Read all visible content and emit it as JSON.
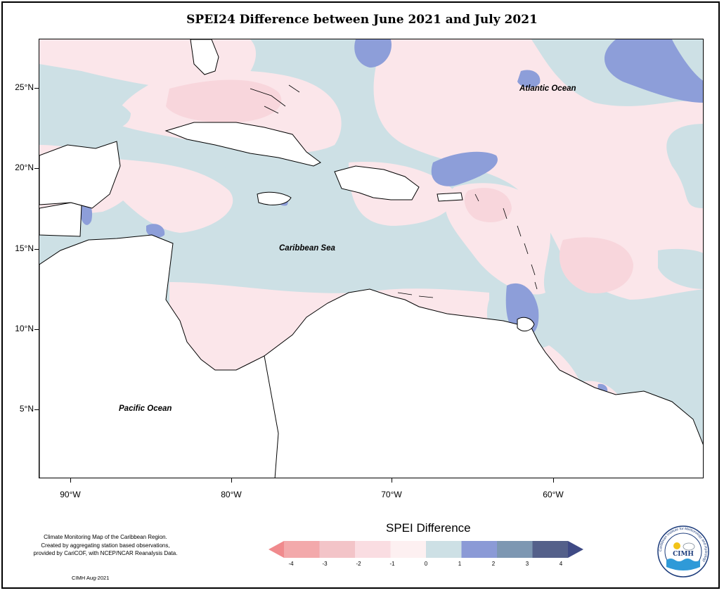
{
  "title": "SPEI24 Difference between June 2021 and July 2021",
  "latitude_labels": [
    "25°N",
    "20°N",
    "15°N",
    "10°N",
    "5°N"
  ],
  "longitude_labels": [
    "90°W",
    "80°W",
    "70°W",
    "60°W"
  ],
  "place_labels": {
    "atlantic": "Atlantic Ocean",
    "caribbean": "Caribbean Sea",
    "pacific": "Pacific Ocean"
  },
  "note_lines": [
    "Climate Monitoring Map of the Caribbean Region.",
    "Created by aggregating station based observations,",
    "provided by CariCOF, with NCEP/NCAR Reanalysis Data."
  ],
  "credit": "CIMH Aug-2021",
  "legend": {
    "title": "SPEI Difference",
    "ticks": [
      "-4",
      "-3",
      "-2",
      "-1",
      "0",
      "1",
      "2",
      "3",
      "4"
    ],
    "colors": [
      "#f08a8d",
      "#f3a9ab",
      "#f3c4c8",
      "#fadde2",
      "#fdf0f1",
      "#cde0e5",
      "#8b9ad6",
      "#7d97b2",
      "#54608a",
      "#3f4a85"
    ]
  },
  "logo": {
    "abbr": "CIMH",
    "ring_text": "Caribbean Institute for Meteorology and Hydrology"
  }
}
